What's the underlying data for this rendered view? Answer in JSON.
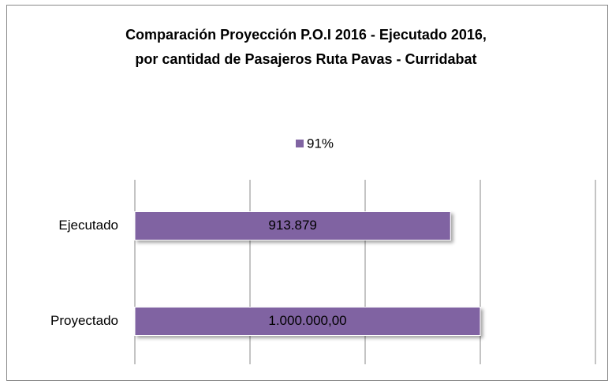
{
  "chart_data": {
    "type": "hbar",
    "title": [
      "Comparación Proyección P.O.I 2016 -  Ejecutado 2016,",
      "por cantidad de Pasajeros  Ruta Pavas - Curridabat"
    ],
    "categories": [
      "Ejecutado",
      "Proyectado"
    ],
    "series": [
      {
        "name": "91%",
        "color": "#8064a2",
        "values": [
          913879,
          1000000
        ],
        "value_labels": [
          "913.879",
          "1.000.000,00"
        ]
      }
    ],
    "xlim": [
      0,
      1333333.33
    ],
    "xticks": [
      0,
      333333.33,
      666666.67,
      1000000,
      1333333.33
    ],
    "grid": true,
    "legend": "top"
  }
}
